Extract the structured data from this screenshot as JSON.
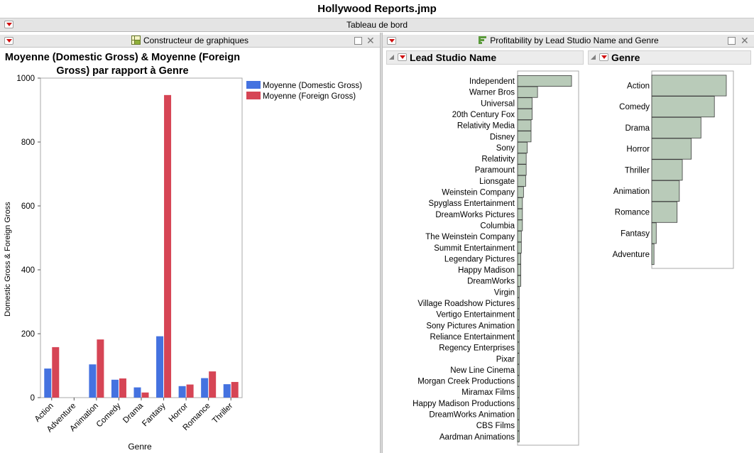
{
  "window": {
    "title": "Hollywood Reports.jmp"
  },
  "dashboard": {
    "label": "Tableau de bord"
  },
  "left_panel": {
    "header": "Constructeur de graphiques",
    "chart_title_line1": "Moyenne (Domestic Gross) & Moyenne (Foreign",
    "chart_title_line2": "Gross) par rapport à Genre"
  },
  "right_panel": {
    "header": "Profitability by Lead Studio Name and Genre",
    "studio_section_title": "Lead Studio Name",
    "genre_section_title": "Genre"
  },
  "colors": {
    "domestic": "#4472e0",
    "foreign": "#d64555",
    "bar_fill": "#b9cbb9",
    "bar_stroke": "#3c3c3c"
  },
  "chart_data": [
    {
      "type": "bar",
      "title": "Moyenne (Domestic Gross) & Moyenne (Foreign Gross) par rapport à Genre",
      "xlabel": "Genre",
      "ylabel": "Domestic Gross & Foreign Gross",
      "ylim": [
        0,
        1000
      ],
      "yticks": [
        0,
        200,
        400,
        600,
        800,
        1000
      ],
      "grid": false,
      "legend_position": "right",
      "categories": [
        "Action",
        "Adventure",
        "Animation",
        "Comedy",
        "Drama",
        "Fantasy",
        "Horror",
        "Romance",
        "Thriller"
      ],
      "series": [
        {
          "name": "Moyenne (Domestic Gross)",
          "values": [
            91,
            0,
            104,
            56,
            32,
            192,
            36,
            61,
            42
          ]
        },
        {
          "name": "Moyenne (Foreign Gross)",
          "values": [
            158,
            0,
            182,
            60,
            16,
            947,
            41,
            82,
            49
          ]
        }
      ]
    },
    {
      "type": "bar",
      "orientation": "horizontal",
      "title": "Lead Studio Name",
      "xlim": [
        0,
        1
      ],
      "categories": [
        "Independent",
        "Warner Bros",
        "Universal",
        "20th Century Fox",
        "Relativity Media",
        "Disney",
        "Sony",
        "Relativity",
        "Paramount",
        "Lionsgate",
        "Weinstein Company",
        "Spyglass Entertainment",
        "DreamWorks Pictures",
        "Columbia",
        "The Weinstein Company",
        "Summit Entertainment",
        "Legendary Pictures",
        "Happy Madison",
        "DreamWorks",
        "Virgin",
        "Village Roadshow Pictures",
        "Vertigo Entertainment",
        "Sony Pictures Animation",
        "Reliance Entertainment",
        "Regency Enterprises",
        "Pixar",
        "New Line Cinema",
        "Morgan Creek Productions",
        "Miramax Films",
        "Happy Madison Productions",
        "DreamWorks Animation",
        "CBS Films",
        "Aardman Animations"
      ],
      "values": [
        1.0,
        0.37,
        0.27,
        0.27,
        0.25,
        0.25,
        0.18,
        0.16,
        0.16,
        0.15,
        0.11,
        0.09,
        0.09,
        0.09,
        0.07,
        0.07,
        0.06,
        0.06,
        0.06,
        0.03,
        0.03,
        0.03,
        0.03,
        0.03,
        0.03,
        0.03,
        0.03,
        0.03,
        0.03,
        0.03,
        0.03,
        0.03,
        0.03
      ]
    },
    {
      "type": "bar",
      "orientation": "horizontal",
      "title": "Genre",
      "xlim": [
        0,
        1
      ],
      "categories": [
        "Action",
        "Comedy",
        "Drama",
        "Horror",
        "Thriller",
        "Animation",
        "Romance",
        "Fantasy",
        "Adventure"
      ],
      "values": [
        1.0,
        0.84,
        0.66,
        0.53,
        0.41,
        0.37,
        0.34,
        0.06,
        0.03
      ]
    }
  ]
}
